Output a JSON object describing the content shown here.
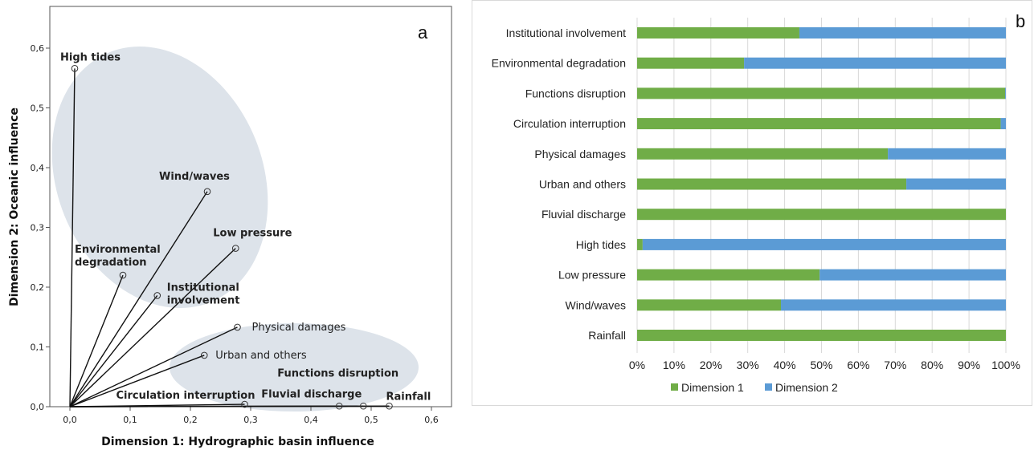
{
  "panel_a": {
    "letter": "a",
    "xlabel": "Dimension 1: Hydrographic basin influence",
    "ylabel": "Dimension 2: Oceanic influence",
    "x_ticks": [
      "0,0",
      "0,1",
      "0,2",
      "0,3",
      "0,4",
      "0,5",
      "0,6"
    ],
    "y_ticks": [
      "0,0",
      "0,1",
      "0,2",
      "0,3",
      "0,4",
      "0,5",
      "0,6"
    ]
  },
  "panel_b": {
    "letter": "b",
    "x_ticks": [
      "0%",
      "10%",
      "20%",
      "30%",
      "40%",
      "50%",
      "60%",
      "70%",
      "80%",
      "90%",
      "100%"
    ]
  },
  "colors": {
    "dimension1": "#70ad47",
    "dimension2": "#5b9bd5",
    "ellipse": "#dde3ea",
    "axis": "#555555"
  },
  "chart_data": [
    {
      "type": "scatter",
      "xlabel": "Dimension 1: Hydrographic basin influence",
      "ylabel": "Dimension 2: Oceanic influence",
      "xlim": [
        -0.03,
        0.62
      ],
      "ylim": [
        0,
        0.64
      ],
      "points": [
        {
          "label": "High tides",
          "x": 0.008,
          "y": 0.566
        },
        {
          "label": "Wind/waves",
          "x": 0.228,
          "y": 0.36
        },
        {
          "label": "Low pressure",
          "x": 0.275,
          "y": 0.265
        },
        {
          "label": "Environmental degradation",
          "x": 0.088,
          "y": 0.22
        },
        {
          "label": "Institutional involvement",
          "x": 0.145,
          "y": 0.186
        },
        {
          "label": "Physical damages",
          "x": 0.278,
          "y": 0.133
        },
        {
          "label": "Urban and others",
          "x": 0.223,
          "y": 0.086
        },
        {
          "label": "Circulation interruption",
          "x": 0.29,
          "y": 0.004
        },
        {
          "label": "Fluvial discharge",
          "x": 0.447,
          "y": 0.001
        },
        {
          "label": "Functions disruption",
          "x": 0.487,
          "y": 0.001
        },
        {
          "label": "Rainfall",
          "x": 0.53,
          "y": 0.001
        }
      ]
    },
    {
      "type": "bar",
      "orientation": "horizontal",
      "stacked": "percent",
      "categories": [
        "Institutional involvement",
        "Environmental degradation",
        "Functions disruption",
        "Circulation interruption",
        "Physical damages",
        "Urban and others",
        "Fluvial discharge",
        "High tides",
        "Low pressure",
        "Wind/waves",
        "Rainfall"
      ],
      "series": [
        {
          "name": "Dimension 1",
          "values": [
            44,
            29,
            99.8,
            98.6,
            68,
            73,
            100,
            1.5,
            49.5,
            39,
            100
          ]
        },
        {
          "name": "Dimension 2",
          "values": [
            56,
            71,
            0.2,
            1.4,
            32,
            27,
            0,
            98.5,
            50.5,
            61,
            0
          ]
        }
      ],
      "xlim": [
        0,
        100
      ],
      "legend": "bottom"
    }
  ]
}
